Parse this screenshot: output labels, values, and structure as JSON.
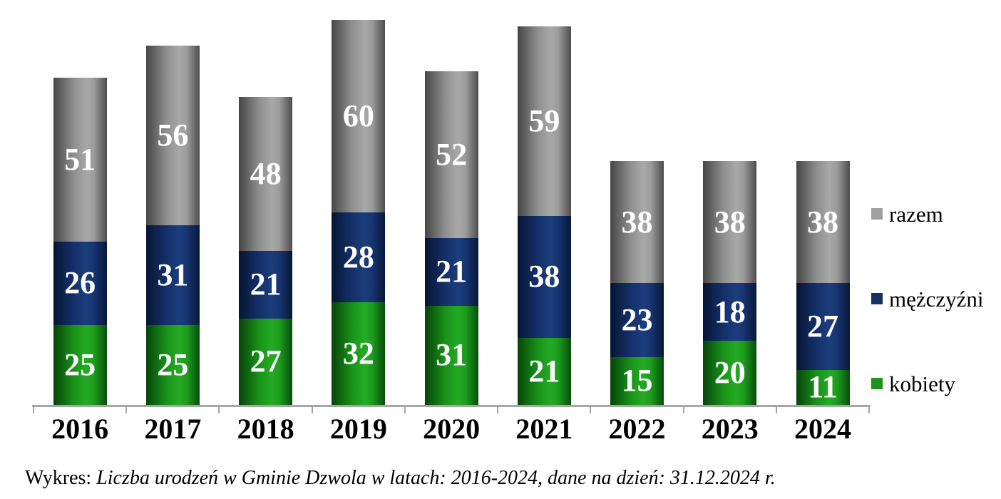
{
  "chart_data": {
    "type": "bar",
    "stacked": true,
    "title": "",
    "categories": [
      "2016",
      "2017",
      "2018",
      "2019",
      "2020",
      "2021",
      "2022",
      "2023",
      "2024"
    ],
    "series": [
      {
        "key": "kobiety",
        "name": "kobiety",
        "color": "#1d931d",
        "values": [
          25,
          25,
          27,
          32,
          31,
          21,
          15,
          20,
          11
        ]
      },
      {
        "key": "mezczyzni",
        "name": "mężczyźni",
        "color": "#152f63",
        "values": [
          26,
          31,
          21,
          28,
          21,
          38,
          23,
          18,
          27
        ]
      },
      {
        "key": "razem",
        "name": "razem",
        "color": "#a0a0a0",
        "values": [
          51,
          56,
          48,
          60,
          52,
          59,
          38,
          38,
          38
        ]
      }
    ],
    "legend_order": [
      "razem",
      "mężczyźni",
      "kobiety"
    ],
    "legend_position": "right",
    "value_label_color": "#ffffff",
    "axis_color": "#a6a6a6",
    "grid": false
  },
  "caption": {
    "prefix": "Wykres: ",
    "italic_text": "Liczba urodzeń w Gminie Dzwola w latach: 2016-2024, dane na dzień: 31.12.2024 r."
  }
}
